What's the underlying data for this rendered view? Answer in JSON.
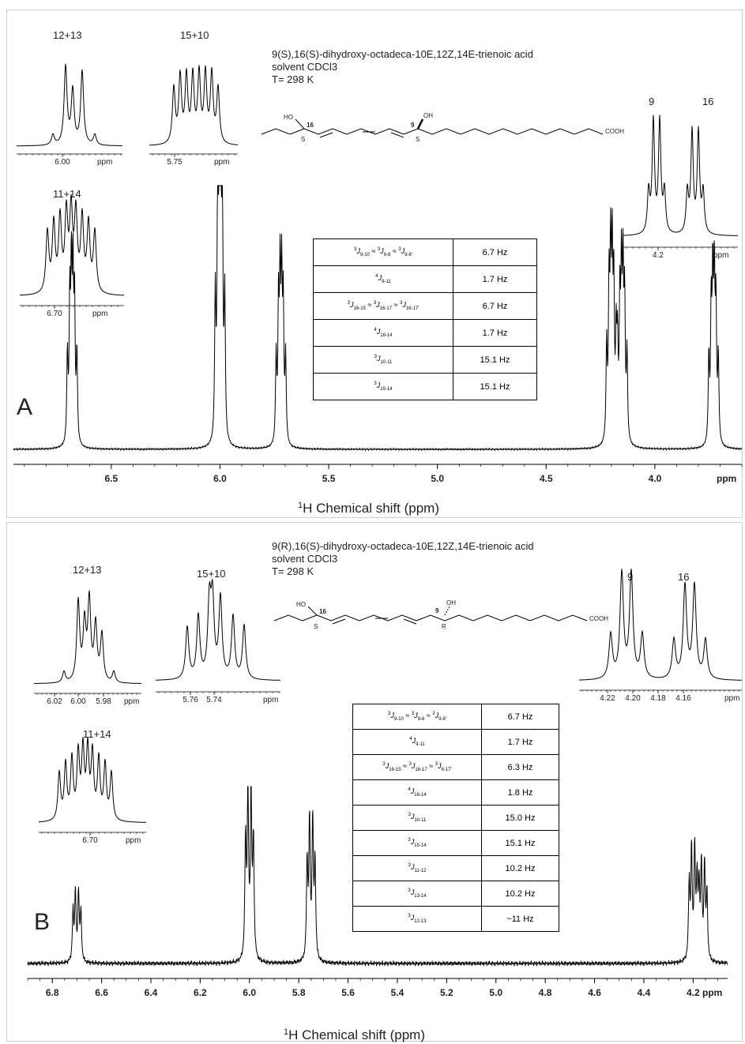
{
  "panels": [
    {
      "letter": "A",
      "compound": "9(S),16(S)-dihydroxy-octadeca-10E,12Z,14E-trienoic acid",
      "solvent": "solvent CDCl3",
      "temperature": "T= 298 K",
      "structure": {
        "c16": "16",
        "c9": "9",
        "ho": "HO",
        "oh": "OH",
        "cooh": "COOH",
        "stereo16": "S",
        "stereo9": "S"
      },
      "insets": [
        {
          "label": "12+13",
          "ticks": [
            "6.00"
          ],
          "unit": "ppm"
        },
        {
          "label": "15+10",
          "ticks": [
            "5.75"
          ],
          "unit": "ppm"
        },
        {
          "label": "11+14",
          "ticks": [
            "6.70"
          ],
          "unit": "ppm"
        },
        {
          "label_left": "9",
          "label_right": "16",
          "ticks": [
            "4.2"
          ],
          "unit": "ppm"
        }
      ],
      "couplings": [
        {
          "sym": "3J9-10 ≈ 3J9-8 ≈ 3J9-8'",
          "value": "6.7 Hz"
        },
        {
          "sym": "4J9-11",
          "value": "1.7 Hz"
        },
        {
          "sym": "3J16-15 ≈ 3J16-17 ≈ 3J16-17'",
          "value": "6.7 Hz"
        },
        {
          "sym": "4J16-14",
          "value": "1.7 Hz"
        },
        {
          "sym": "3J10-11",
          "value": "15.1 Hz"
        },
        {
          "sym": "3J15-14",
          "value": "15.1 Hz"
        }
      ],
      "axis_unit": "ppm"
    },
    {
      "letter": "B",
      "compound": "9(R),16(S)-dihydroxy-octadeca-10E,12Z,14E-trienoic acid",
      "solvent": "solvent CDCl3",
      "temperature": "T= 298 K",
      "structure": {
        "c16": "16",
        "c9": "9",
        "ho": "HO",
        "oh": "OH",
        "cooh": "COOH",
        "stereo16": "S",
        "stereo9": "R"
      },
      "insets": [
        {
          "label": "12+13",
          "ticks": [
            "6.02",
            "6.00",
            "5.98"
          ],
          "unit": "ppm"
        },
        {
          "label": "15+10",
          "ticks": [
            "5.76",
            "5.74"
          ],
          "unit": "ppm"
        },
        {
          "label": "11+14",
          "ticks": [
            "6.70"
          ],
          "unit": "ppm"
        },
        {
          "label_left": "9",
          "label_right": "16",
          "ticks": [
            "4.22",
            "4.20",
            "4.18",
            "4.16"
          ],
          "unit": "ppm"
        }
      ],
      "couplings": [
        {
          "sym": "3J9-10 ≈ 3J9-8 ≈ 3J9-8'",
          "value": "6.7 Hz"
        },
        {
          "sym": "4J9-11",
          "value": "1.7 Hz"
        },
        {
          "sym": "3J16-15 ≈ 3J16-17 ≈ 3J6-17'",
          "value": "6.3 Hz"
        },
        {
          "sym": "4J16-14",
          "value": "1.8 Hz"
        },
        {
          "sym": "3J10-11",
          "value": "15.0 Hz"
        },
        {
          "sym": "3J15-14",
          "value": "15.1 Hz"
        },
        {
          "sym": "3J11-12",
          "value": "10.2 Hz"
        },
        {
          "sym": "3J13-14",
          "value": "10.2 Hz"
        },
        {
          "sym": "3J12-13",
          "value": "~11 Hz"
        }
      ],
      "axis_unit": "ppm"
    }
  ],
  "chart_data": [
    {
      "type": "line",
      "title": "9(S),16(S)-dihydroxy-octadeca-10E,12Z,14E-trienoic acid",
      "xlabel": "1H Chemical shift (ppm)",
      "x_ticks": [
        6.5,
        6.0,
        5.5,
        5.0,
        4.5,
        4.0
      ],
      "xlim": [
        6.95,
        3.6
      ],
      "x_reversed": true,
      "peaks": [
        {
          "assignment": "11+14",
          "shift_ppm": 6.68,
          "rel_height": 0.62
        },
        {
          "assignment": "12+13",
          "shift_ppm": 6.0,
          "rel_height": 1.0
        },
        {
          "assignment": "15+10",
          "shift_ppm": 5.72,
          "rel_height": 0.6
        },
        {
          "assignment": "9",
          "shift_ppm": 4.2,
          "rel_height": 0.67
        },
        {
          "assignment": "16",
          "shift_ppm": 4.15,
          "rel_height": 0.61
        },
        {
          "shift_ppm": 3.73,
          "rel_height": 0.6
        }
      ]
    },
    {
      "type": "line",
      "title": "9(R),16(S)-dihydroxy-octadeca-10E,12Z,14E-trienoic acid",
      "xlabel": "1H Chemical shift (ppm)",
      "x_ticks": [
        6.8,
        6.6,
        6.4,
        6.2,
        6.0,
        5.8,
        5.6,
        5.4,
        5.2,
        5.0,
        4.8,
        4.6,
        4.4,
        4.2
      ],
      "xlim": [
        6.9,
        4.06
      ],
      "x_reversed": true,
      "peaks": [
        {
          "assignment": "11+14",
          "shift_ppm": 6.7,
          "rel_height": 0.4
        },
        {
          "assignment": "12+13",
          "shift_ppm": 6.0,
          "rel_height": 0.98
        },
        {
          "assignment": "15+10",
          "shift_ppm": 5.75,
          "rel_height": 0.8
        },
        {
          "assignment": "9",
          "shift_ppm": 4.2,
          "rel_height": 0.63
        },
        {
          "assignment": "16",
          "shift_ppm": 4.16,
          "rel_height": 0.55
        }
      ]
    }
  ]
}
